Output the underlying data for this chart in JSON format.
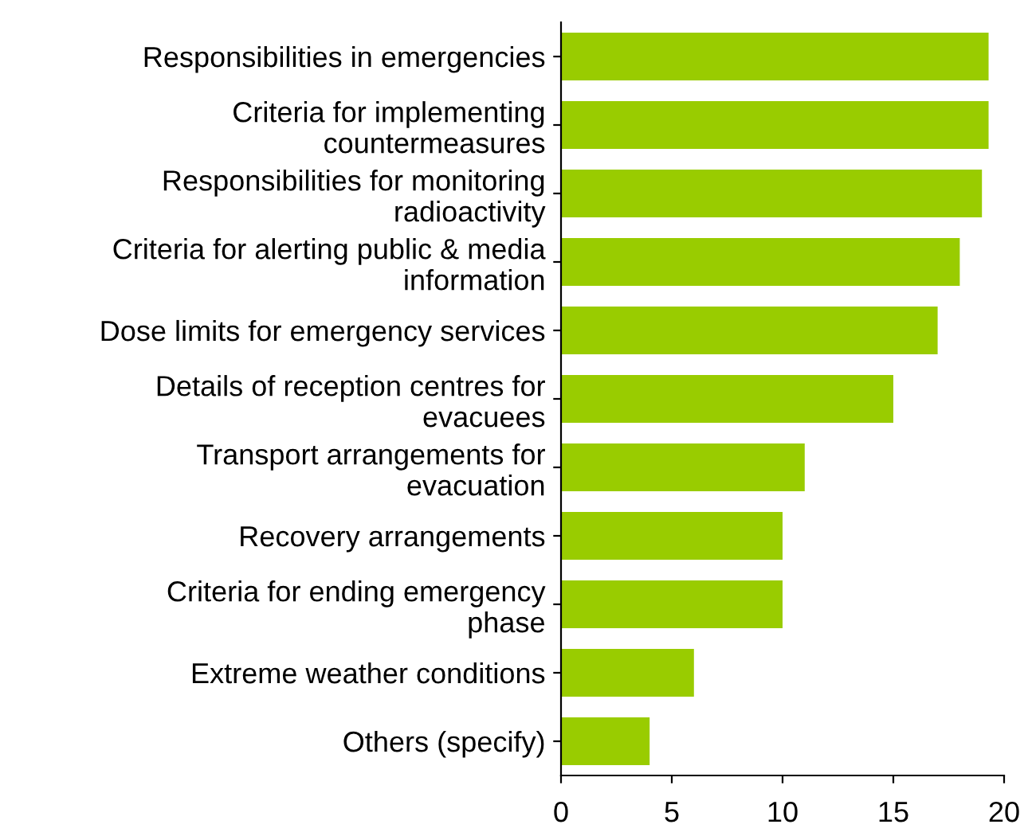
{
  "chart_data": {
    "type": "bar",
    "orientation": "horizontal",
    "categories": [
      "Responsibilities in emergencies",
      "Criteria for implementing\ncountermeasures",
      "Responsibilities for monitoring\nradioactivity",
      "Criteria for alerting public & media\ninformation",
      "Dose limits for emergency services",
      "Details of reception centres for\nevacuees",
      "Transport arrangements for\nevacuation",
      "Recovery arrangements",
      "Criteria for ending emergency\nphase",
      "Extreme weather conditions",
      "Others (specify)"
    ],
    "values": [
      19.3,
      19.3,
      19,
      18,
      17,
      15,
      11,
      10,
      10,
      6,
      4
    ],
    "color": "#99cc00",
    "xlim": [
      0,
      20
    ],
    "xticks": [
      0,
      5,
      10,
      15,
      20
    ],
    "grid": false
  }
}
